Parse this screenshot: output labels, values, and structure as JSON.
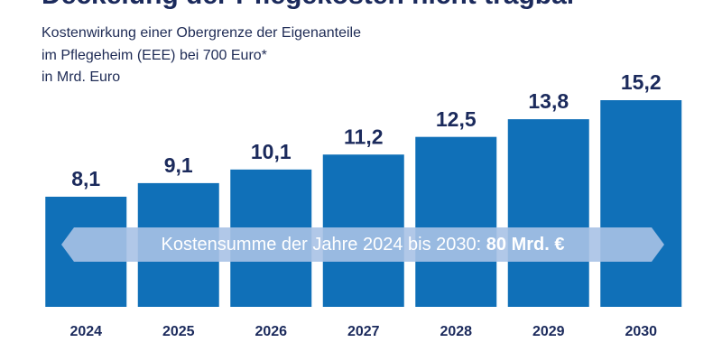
{
  "chart_data": {
    "type": "bar",
    "title": "Deckelung der Pflegekosten nicht tragbar",
    "subtitle": [
      "Kostenwirkung einer Obergrenze der Eigenanteile",
      "im Pflegeheim (EEE) bei 700 Euro*",
      "in Mrd. Euro"
    ],
    "categories": [
      "2024",
      "2025",
      "2026",
      "2027",
      "2028",
      "2029",
      "2030"
    ],
    "values": [
      8.1,
      9.1,
      10.1,
      11.2,
      12.5,
      13.8,
      15.2
    ],
    "value_labels": [
      "8,1",
      "9,1",
      "10,1",
      "11,2",
      "12,5",
      "13,8",
      "15,2"
    ],
    "color": "#1070b8",
    "annotation": {
      "text": "Kostensumme der Jahre 2024 bis 2030:",
      "highlight": "80 Mrd. €"
    }
  }
}
